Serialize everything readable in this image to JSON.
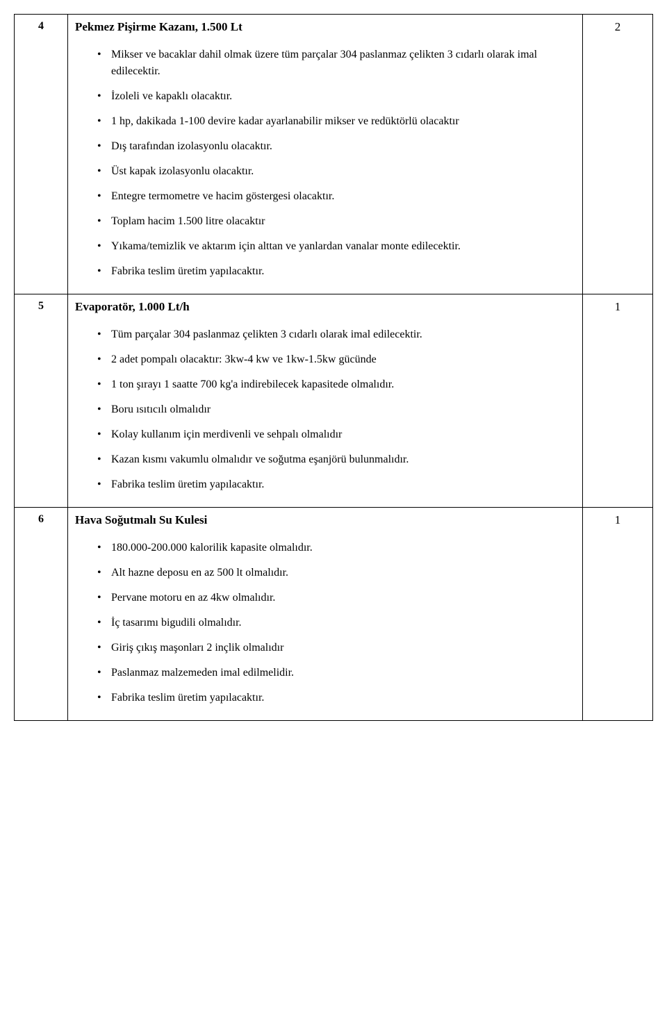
{
  "rows": [
    {
      "num": "4",
      "title": "Pekmez Pişirme Kazanı, 1.500 Lt",
      "bullets": [
        "Mikser ve bacaklar dahil olmak üzere tüm parçalar 304 paslanmaz çelikten 3 cıdarlı olarak imal edilecektir.",
        "İzoleli ve kapaklı olacaktır.",
        "1 hp, dakikada 1-100 devire kadar ayarlanabilir mikser ve redüktörlü olacaktır",
        "Dış tarafından izolasyonlu olacaktır.",
        "Üst kapak izolasyonlu olacaktır.",
        "Entegre termometre ve hacim göstergesi olacaktır.",
        "Toplam hacim 1.500 litre olacaktır",
        "Yıkama/temizlik ve aktarım için alttan ve yanlardan vanalar monte edilecektir.",
        "Fabrika teslim üretim yapılacaktır."
      ],
      "qty": "2"
    },
    {
      "num": "5",
      "title": "Evaporatör, 1.000 Lt/h",
      "bullets": [
        "Tüm parçalar 304 paslanmaz çelikten 3 cıdarlı olarak imal edilecektir.",
        "2 adet pompalı olacaktır: 3kw-4 kw ve 1kw-1.5kw gücünde",
        "1 ton şırayı 1 saatte 700 kg'a indirebilecek kapasitede olmalıdır.",
        "Boru ısıtıcılı olmalıdır",
        "Kolay kullanım için merdivenli ve sehpalı olmalıdır",
        "Kazan kısmı vakumlu olmalıdır ve soğutma eşanjörü bulunmalıdır.",
        "Fabrika teslim üretim yapılacaktır."
      ],
      "qty": "1"
    },
    {
      "num": "6",
      "title": "Hava Soğutmalı Su Kulesi",
      "bullets": [
        "180.000-200.000 kalorilik kapasite olmalıdır.",
        "Alt hazne deposu en az 500 lt olmalıdır.",
        "Pervane motoru en az 4kw olmalıdır.",
        "İç tasarımı bigudili olmalıdır.",
        "Giriş çıkış maşonları 2 inçlik olmalıdır",
        "Paslanmaz malzemeden imal edilmelidir.",
        "Fabrika teslim üretim yapılacaktır."
      ],
      "qty": "1"
    }
  ]
}
